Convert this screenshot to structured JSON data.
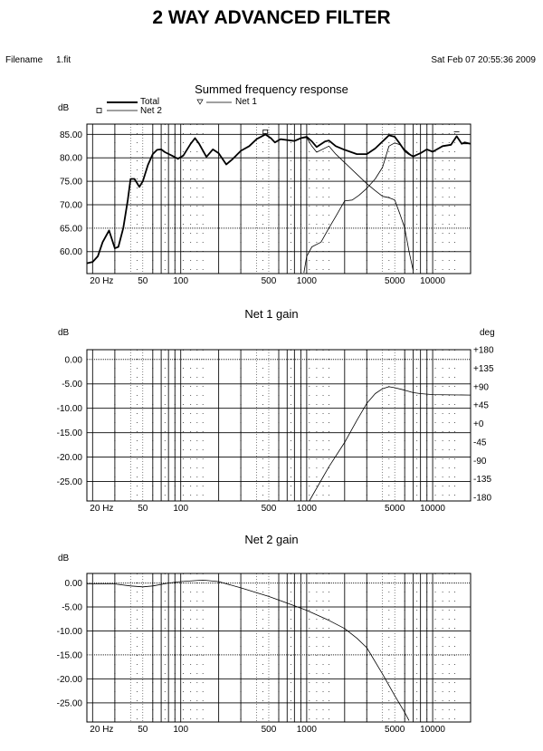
{
  "page": {
    "title": "2 WAY ADVANCED FILTER",
    "filename_label": "Filename",
    "filename": "1.fit",
    "timestamp": "Sat Feb 07 20:55:36 2009"
  },
  "colors": {
    "line": "#000000",
    "grid": "#000000",
    "background": "#ffffff"
  },
  "chart_data": [
    {
      "type": "line",
      "title": "Summed frequency response",
      "ylabel": "dB",
      "xscale": "log",
      "xlim": [
        18,
        20000
      ],
      "ylim": [
        55.3,
        87.2
      ],
      "xticks": [
        20,
        50,
        100,
        500,
        1000,
        5000,
        10000
      ],
      "xtick_labels": [
        "20 Hz",
        "50",
        "100",
        "500",
        "1000",
        "5000",
        "10000"
      ],
      "yticks": [
        85,
        80,
        75,
        70,
        65,
        60
      ],
      "ytick_labels": [
        "85.00",
        "80.00",
        "75.00",
        "70.00",
        "65.00",
        "60.00"
      ],
      "grid": true,
      "legend": [
        {
          "name": "Total",
          "marker": "none"
        },
        {
          "name": "Net 2",
          "marker": "square"
        },
        {
          "name": "Net 1",
          "marker": "triangle-down"
        }
      ],
      "series": [
        {
          "name": "Total",
          "weight": "bold",
          "x": [
            18,
            20,
            22,
            24,
            27,
            30,
            32,
            35,
            38,
            40,
            43,
            47,
            50,
            55,
            60,
            65,
            70,
            75,
            85,
            95,
            105,
            120,
            130,
            140,
            160,
            180,
            200,
            230,
            260,
            300,
            350,
            400,
            470,
            520,
            560,
            620,
            700,
            800,
            900,
            1000,
            1100,
            1200,
            1400,
            1500,
            1700,
            2000,
            2500,
            3000,
            3500,
            4000,
            4500,
            5000,
            5500,
            6000,
            6500,
            7000,
            8000,
            9000,
            10000,
            12000,
            14000,
            15500,
            17000,
            18000,
            20000
          ],
          "y": [
            57.5,
            57.8,
            59,
            62,
            64.5,
            60.7,
            61,
            65,
            71,
            75.5,
            75.5,
            73.8,
            75,
            78.5,
            80.8,
            81.7,
            81.8,
            81.2,
            80.5,
            79.8,
            80.5,
            83,
            84.2,
            83,
            80.2,
            81.8,
            81,
            78.6,
            79.8,
            81.5,
            82.5,
            84,
            85,
            84.2,
            83.3,
            84,
            83.8,
            83.6,
            84.2,
            84.5,
            83.5,
            82.3,
            83.5,
            83.7,
            82.5,
            81.7,
            80.8,
            80.8,
            82,
            83.5,
            84.8,
            84.5,
            83,
            81.5,
            80.8,
            80.3,
            81,
            81.8,
            81.3,
            82.5,
            82.8,
            84.6,
            83,
            83.3,
            83
          ]
        },
        {
          "name": "Net 2",
          "weight": "normal",
          "x": [
            900,
            1000,
            1100,
            1200,
            1500,
            1700,
            2000,
            2500,
            3000,
            3500,
            4000,
            4500,
            5000,
            5500,
            6000,
            6500,
            7000
          ],
          "y": [
            84.2,
            84.3,
            82.5,
            81.2,
            82.5,
            80.8,
            79,
            76.5,
            74.5,
            73,
            71.8,
            71.5,
            71,
            68,
            65,
            60,
            56
          ]
        },
        {
          "name": "Net 1",
          "weight": "normal",
          "x": [
            950,
            1000,
            1100,
            1300,
            1500,
            1700,
            2000,
            2300,
            2600,
            3000,
            3500,
            4000,
            4500,
            5000,
            5500,
            6000,
            7000,
            8000,
            9000,
            10000,
            12000,
            14000,
            15500,
            17000,
            20000
          ],
          "y": [
            55.5,
            59,
            61,
            62,
            65,
            67.5,
            70.8,
            71,
            72,
            73.5,
            75.5,
            78,
            82.5,
            83.2,
            82.8,
            81.8,
            80.2,
            81,
            81.8,
            81.3,
            82.5,
            82.8,
            84.6,
            83,
            83
          ]
        }
      ]
    },
    {
      "type": "line",
      "title": "Net 1 gain",
      "ylabel": "dB",
      "y2label": "deg",
      "xscale": "log",
      "xlim": [
        18,
        20000
      ],
      "ylim": [
        -29,
        2
      ],
      "y2lim": [
        -180,
        180
      ],
      "xticks": [
        20,
        50,
        100,
        500,
        1000,
        5000,
        10000
      ],
      "xtick_labels": [
        "20 Hz",
        "50",
        "100",
        "500",
        "1000",
        "5000",
        "10000"
      ],
      "yticks": [
        0,
        -5,
        -10,
        -15,
        -20,
        -25
      ],
      "ytick_labels": [
        "0.00",
        "-5.00",
        "-10.00",
        "-15.00",
        "-20.00",
        "-25.00"
      ],
      "y2ticks": [
        180,
        135,
        90,
        45,
        0,
        -45,
        -90,
        -135,
        -180
      ],
      "y2tick_labels": [
        "+180",
        "+135",
        "+90",
        "+45",
        "+0",
        "-45",
        "-90",
        "-135",
        "-180"
      ],
      "grid": true,
      "series": [
        {
          "name": "",
          "weight": "normal",
          "x": [
            1050,
            1500,
            2000,
            2500,
            3000,
            3500,
            4000,
            4500,
            5000,
            6000,
            7000,
            8000,
            10000,
            20000
          ],
          "y": [
            -29,
            -22,
            -17,
            -12.5,
            -9,
            -7,
            -6,
            -5.6,
            -5.8,
            -6.3,
            -6.8,
            -7,
            -7.2,
            -7.3
          ]
        }
      ]
    },
    {
      "type": "line",
      "title": "Net 2 gain",
      "ylabel": "dB",
      "xscale": "log",
      "xlim": [
        18,
        20000
      ],
      "ylim": [
        -29,
        2
      ],
      "xticks": [
        20,
        50,
        100,
        500,
        1000,
        5000,
        10000
      ],
      "xtick_labels": [
        "20 Hz",
        "50",
        "100",
        "500",
        "1000",
        "5000",
        "10000"
      ],
      "yticks": [
        0,
        -5,
        -10,
        -15,
        -20,
        -25
      ],
      "ytick_labels": [
        "0.00",
        "-5.00",
        "-10.00",
        "-15.00",
        "-20.00",
        "-25.00"
      ],
      "grid": true,
      "series": [
        {
          "name": "",
          "weight": "normal",
          "x": [
            18,
            20,
            30,
            40,
            50,
            60,
            80,
            100,
            150,
            200,
            300,
            400,
            500,
            700,
            1000,
            1500,
            2000,
            2500,
            3000,
            4000,
            5000,
            6000,
            6500
          ],
          "y": [
            -0.2,
            -0.2,
            -0.2,
            -0.6,
            -0.8,
            -0.6,
            0,
            0.3,
            0.6,
            0.3,
            -1,
            -2,
            -2.8,
            -4.2,
            -5.7,
            -7.8,
            -9.5,
            -11.5,
            -13.5,
            -19,
            -23.5,
            -27,
            -28.7
          ]
        }
      ]
    }
  ]
}
